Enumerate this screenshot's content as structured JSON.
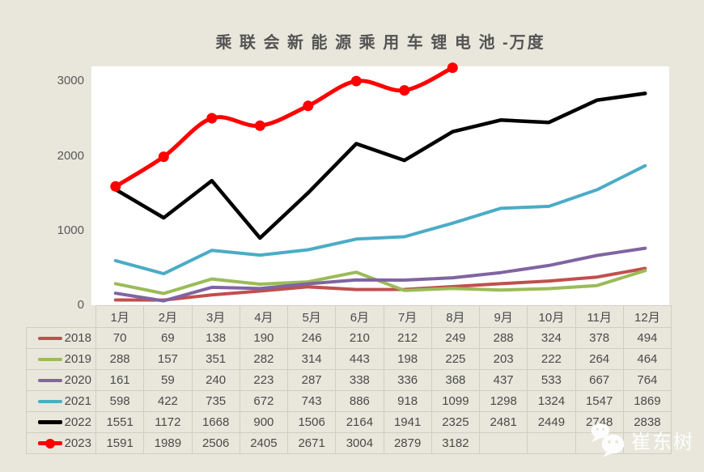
{
  "title": "乘 联 会 新 能 源 乘 用 车 锂 电 池 -万度",
  "watermark": {
    "text": "崔东树",
    "icon": "wechat-icon"
  },
  "colors": {
    "background": "#e9e7db",
    "plot_background": "#ffffff",
    "axis_text": "#595959",
    "table_text": "#4a4a4a",
    "table_border": "#d0cec3"
  },
  "chart_data": {
    "type": "line",
    "title": "乘 联 会 新 能 源 乘 用 车 锂 电 池 -万度",
    "categories": [
      "1月",
      "2月",
      "3月",
      "4月",
      "5月",
      "6月",
      "7月",
      "8月",
      "9月",
      "10月",
      "11月",
      "12月"
    ],
    "yticks": [
      0,
      1000,
      2000,
      3000
    ],
    "ylim": [
      0,
      3200
    ],
    "grid": false,
    "legend_position": "table-left-column",
    "series": [
      {
        "name": "2018",
        "color": "#C0504D",
        "values": [
          70,
          69,
          138,
          190,
          246,
          210,
          212,
          249,
          288,
          324,
          378,
          494
        ]
      },
      {
        "name": "2019",
        "color": "#9BBB59",
        "values": [
          288,
          157,
          351,
          282,
          314,
          443,
          198,
          225,
          203,
          222,
          264,
          464
        ]
      },
      {
        "name": "2020",
        "color": "#8064A2",
        "values": [
          161,
          59,
          240,
          223,
          287,
          338,
          336,
          368,
          437,
          533,
          667,
          764
        ]
      },
      {
        "name": "2021",
        "color": "#4BACC6",
        "values": [
          598,
          422,
          735,
          672,
          743,
          886,
          918,
          1099,
          1298,
          1324,
          1547,
          1869
        ]
      },
      {
        "name": "2022",
        "color": "#000000",
        "values": [
          1551,
          1172,
          1668,
          900,
          1506,
          2164,
          1941,
          2325,
          2481,
          2449,
          2748,
          2838
        ]
      },
      {
        "name": "2023",
        "color": "#FF0000",
        "values": [
          1591,
          1989,
          2506,
          2405,
          2671,
          3004,
          2879,
          3182,
          null,
          null,
          null,
          null
        ],
        "marker": true,
        "smooth": true
      }
    ]
  }
}
